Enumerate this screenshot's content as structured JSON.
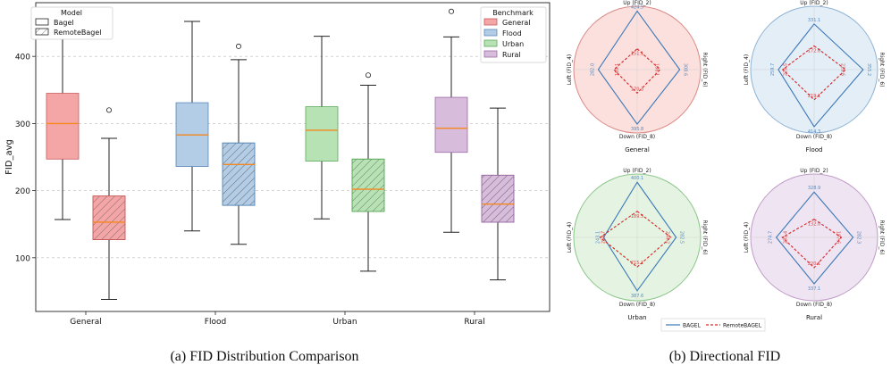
{
  "chart_data": [
    {
      "type": "box",
      "title": "",
      "caption": "(a) FID Distribution Comparison",
      "xlabel": "",
      "ylabel": "FID_avg",
      "ylim": [
        20,
        480
      ],
      "yticks": [
        100,
        200,
        300,
        400
      ],
      "grid": "y-dashed",
      "categories": [
        "General",
        "Flood",
        "Urban",
        "Rural"
      ],
      "colors": {
        "General": {
          "fill": "#f4a6a6",
          "edge": "#c85a5a"
        },
        "Flood": {
          "fill": "#b4cde6",
          "edge": "#5a88b8"
        },
        "Urban": {
          "fill": "#b7e2b4",
          "edge": "#5aa85a"
        },
        "Rural": {
          "fill": "#d8bcdc",
          "edge": "#9a6aa6"
        },
        "median": "#f5871f"
      },
      "series": [
        {
          "name": "Bagel",
          "hatch": false,
          "boxes": [
            {
              "category": "General",
              "whislo": 157,
              "q1": 247,
              "med": 300,
              "q3": 345,
              "whishi": 455,
              "fliers": []
            },
            {
              "category": "Flood",
              "whislo": 140,
              "q1": 236,
              "med": 283,
              "q3": 331,
              "whishi": 452,
              "fliers": []
            },
            {
              "category": "Urban",
              "whislo": 158,
              "q1": 244,
              "med": 290,
              "q3": 325,
              "whishi": 430,
              "fliers": []
            },
            {
              "category": "Rural",
              "whislo": 138,
              "q1": 257,
              "med": 293,
              "q3": 339,
              "whishi": 429,
              "fliers": [
                467
              ]
            }
          ]
        },
        {
          "name": "RemoteBagel",
          "hatch": true,
          "boxes": [
            {
              "category": "General",
              "whislo": 38,
              "q1": 127,
              "med": 153,
              "q3": 192,
              "whishi": 278,
              "fliers": [
                320
              ]
            },
            {
              "category": "Flood",
              "whislo": 120,
              "q1": 178,
              "med": 239,
              "q3": 271,
              "whishi": 395,
              "fliers": [
                415
              ]
            },
            {
              "category": "Urban",
              "whislo": 80,
              "q1": 169,
              "med": 202,
              "q3": 247,
              "whishi": 357,
              "fliers": [
                372
              ]
            },
            {
              "category": "Rural",
              "whislo": 67,
              "q1": 153,
              "med": 180,
              "q3": 223,
              "whishi": 323,
              "fliers": []
            }
          ]
        }
      ],
      "legend_model": {
        "title": "Model",
        "entries": [
          "Bagel",
          "RemoteBagel"
        ],
        "position": "top-left"
      },
      "legend_benchmark": {
        "title": "Benchmark",
        "entries": [
          "General",
          "Flood",
          "Urban",
          "Rural"
        ],
        "position": "top-right"
      }
    },
    {
      "type": "radar",
      "caption": "(b) Directional FID",
      "axes": [
        "Up (FID_2)",
        "Right (FID_6)",
        "Down (FID_8)",
        "Left (FID_4)"
      ],
      "series_names": [
        "BAGEL",
        "RemoteBAGEL"
      ],
      "series_colors": {
        "BAGEL": "#3b78b8",
        "RemoteBAGEL": "#d62728"
      },
      "panels": [
        {
          "name": "General",
          "bg": "#fbe0de",
          "ring": "#d98a86",
          "BAGEL": [
            "424.5",
            "308.6",
            "395.8",
            "282.0"
          ],
          "RemoteBAGEL": [
            "151.1",
            "166.1",
            "170.3",
            "169.1"
          ]
        },
        {
          "name": "Flood",
          "bg": "#e4eef7",
          "ring": "#8fb3d4",
          "BAGEL": [
            "331.1",
            "355.2",
            "414.3",
            "259.7"
          ],
          "RemoteBAGEL": [
            "172.0",
            "228.6",
            "219.1",
            "228.5"
          ]
        },
        {
          "name": "Urban",
          "bg": "#e5f4e2",
          "ring": "#8cc68a",
          "BAGEL": [
            "400.1",
            "282.5",
            "387.6",
            "243.1"
          ],
          "RemoteBAGEL": [
            "189.5",
            "244.2",
            "215.1",
            "268.7"
          ]
        },
        {
          "name": "Rural",
          "bg": "#efe4f1",
          "ring": "#c09cc7",
          "BAGEL": [
            "328.9",
            "282.3",
            "337.1",
            "274.7"
          ],
          "RemoteBAGEL": [
            "132.0",
            "197.6",
            "220.1",
            "231.4"
          ]
        }
      ],
      "rmax": 460
    }
  ]
}
